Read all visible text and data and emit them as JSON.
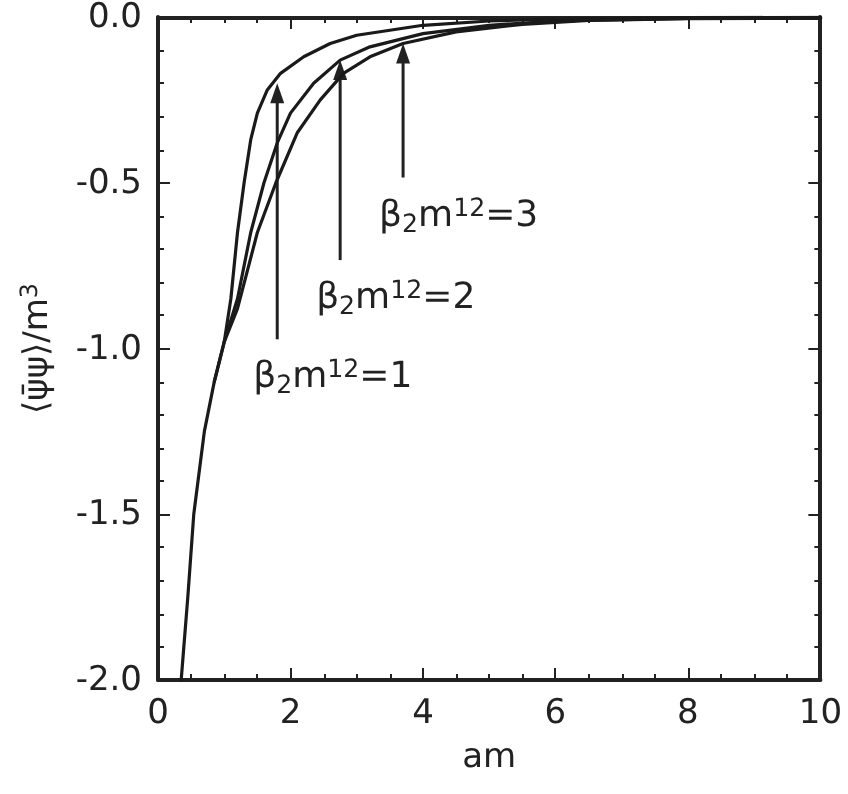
{
  "chart_data": {
    "type": "line",
    "xlabel": "am",
    "ylabel": "⟨ψ̄ψ⟩/m$^{3}$",
    "xlim": [
      0,
      10
    ],
    "xticks": [
      0,
      2,
      4,
      6,
      8,
      10
    ],
    "ylim": [
      -2,
      0
    ],
    "yticks": [
      {
        "value": -2,
        "label": "-2.0"
      },
      {
        "value": -1.5,
        "label": "-1.5"
      },
      {
        "value": -1,
        "label": "-1.0"
      },
      {
        "value": -0.5,
        "label": "-0.5"
      },
      {
        "value": 0,
        "label": "0.0"
      }
    ],
    "marker": "none",
    "line_style": "solid",
    "series": [
      {
        "color": "#1a1a1a",
        "x": [
          0.35,
          0.45,
          0.54,
          0.7,
          0.85,
          1.0,
          1.1,
          1.2,
          1.3,
          1.4,
          1.5,
          1.65,
          1.85,
          2.2,
          2.6,
          3,
          4,
          5,
          6,
          8,
          10
        ],
        "values": [
          -2,
          -1.75,
          -1.5,
          -1.25,
          -1.1,
          -0.98,
          -0.85,
          -0.65,
          -0.5,
          -0.37,
          -0.29,
          -0.22,
          -0.17,
          -0.12,
          -0.08,
          -0.055,
          -0.025,
          -0.012,
          -0.006,
          -0.002,
          -0.001
        ]
      },
      {
        "color": "#1a1a1a",
        "x": [
          0.85,
          1.0,
          1.2,
          1.4,
          1.6,
          1.8,
          2.0,
          2.35,
          2.75,
          3.2,
          4,
          5,
          6,
          8,
          10
        ],
        "values": [
          -1.1,
          -0.98,
          -0.85,
          -0.65,
          -0.5,
          -0.38,
          -0.29,
          -0.2,
          -0.13,
          -0.09,
          -0.05,
          -0.025,
          -0.012,
          -0.004,
          -0.002
        ]
      },
      {
        "color": "#1a1a1a",
        "x": [
          1.0,
          1.2,
          1.5,
          1.78,
          2.1,
          2.45,
          2.8,
          3.2,
          3.7,
          4.5,
          5.5,
          6.5,
          8,
          10
        ],
        "values": [
          -0.98,
          -0.88,
          -0.65,
          -0.5,
          -0.35,
          -0.25,
          -0.17,
          -0.12,
          -0.08,
          -0.045,
          -0.022,
          -0.01,
          -0.005,
          -0.003
        ]
      }
    ],
    "annotations": [
      {
        "text": "β$_{2}$m$^{12}$=1",
        "x": 1.8,
        "y": -0.2
      },
      {
        "text": "β$_{2}$m$^{12}$=2",
        "x": 2.75,
        "y": -0.13
      },
      {
        "text": "β$_{2}$m$^{12}$=3",
        "x": 3.7,
        "y": -0.08
      }
    ]
  }
}
